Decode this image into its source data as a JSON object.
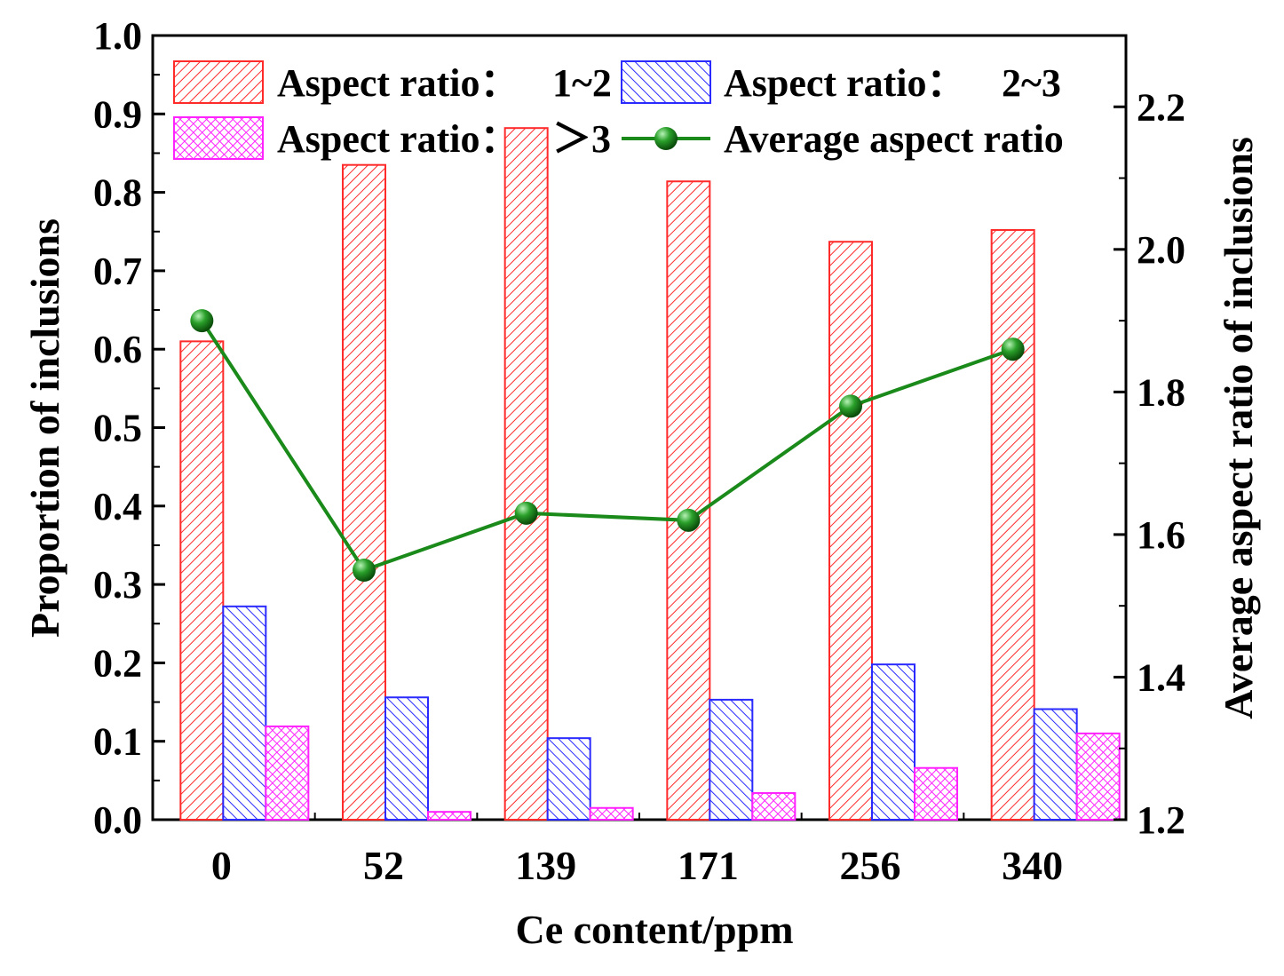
{
  "chart_data": {
    "type": "bar",
    "title": "",
    "xlabel": "Ce content/ppm",
    "ylabel": "Proportion of inclusions",
    "y2label": "Average aspect ratio of inclusions",
    "categories": [
      "0",
      "52",
      "139",
      "171",
      "256",
      "340"
    ],
    "ylim": [
      0,
      1.0
    ],
    "y2lim": [
      1.2,
      2.3
    ],
    "yticks": [
      "0.0",
      "0.1",
      "0.2",
      "0.3",
      "0.4",
      "0.5",
      "0.6",
      "0.7",
      "0.8",
      "0.9",
      "1.0"
    ],
    "y2ticks": [
      "1.2",
      "1.4",
      "1.6",
      "1.8",
      "2.0",
      "2.2"
    ],
    "grid": false,
    "legend_position": "top",
    "series": [
      {
        "name": "Aspect ratio：1~2",
        "legend_label": "Aspect ratio：",
        "legend_range": "1~2",
        "type": "bar",
        "axis": "left",
        "color": "#ff2a2a",
        "values": [
          0.61,
          0.835,
          0.882,
          0.814,
          0.737,
          0.752
        ]
      },
      {
        "name": "Aspect ratio：2~3",
        "legend_label": "Aspect ratio：",
        "legend_range": "2~3",
        "type": "bar",
        "axis": "left",
        "color": "#2a2aff",
        "values": [
          0.272,
          0.156,
          0.104,
          0.153,
          0.198,
          0.141
        ]
      },
      {
        "name": "Aspect ratio：＞3",
        "legend_label": "Aspect ratio：",
        "legend_range": "＞3",
        "type": "bar",
        "axis": "left",
        "color": "#ff22ff",
        "values": [
          0.119,
          0.01,
          0.015,
          0.034,
          0.066,
          0.11
        ]
      },
      {
        "name": "Average aspect ratio",
        "legend_label": "Average aspect ratio",
        "type": "line",
        "axis": "right",
        "color": "#1a8a1a",
        "values": [
          1.9,
          1.55,
          1.63,
          1.62,
          1.78,
          1.86
        ]
      }
    ]
  }
}
